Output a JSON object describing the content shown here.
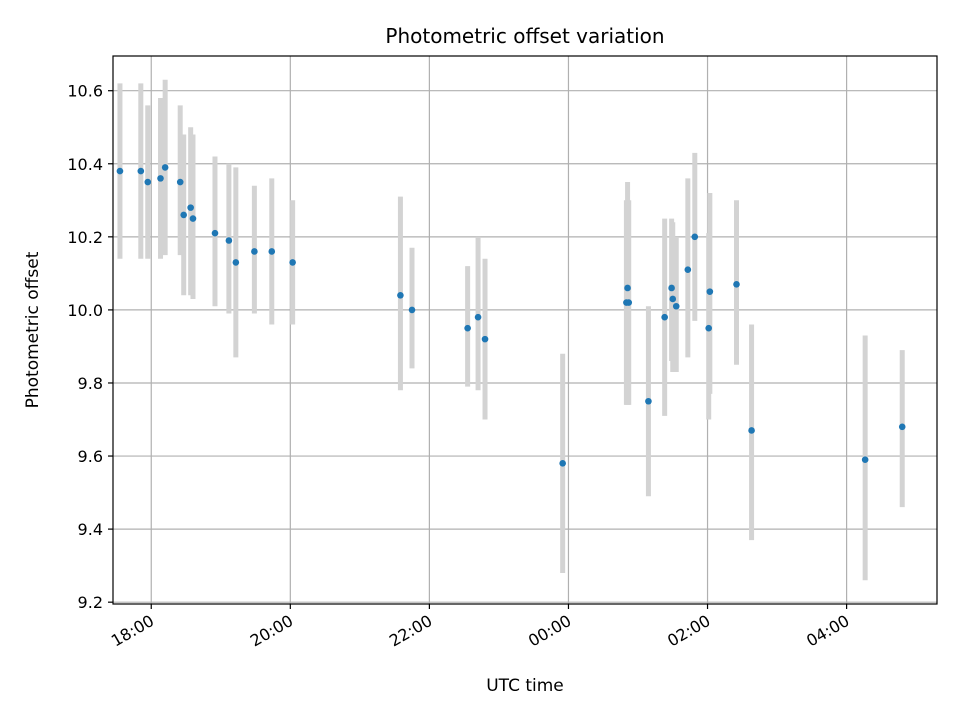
{
  "chart_data": {
    "type": "scatter",
    "title": "Photometric offset variation",
    "xlabel": "UTC time",
    "ylabel": "Photometric offset",
    "x_axis": "time",
    "x_range": [
      "17:27",
      "05:18"
    ],
    "y_range": [
      9.195,
      10.695
    ],
    "y_ticks": [
      9.2,
      9.4,
      9.6,
      9.8,
      10.0,
      10.2,
      10.4,
      10.6
    ],
    "y_tick_labels": [
      "9.2",
      "9.4",
      "9.6",
      "9.8",
      "10.0",
      "10.2",
      "10.4",
      "10.6"
    ],
    "x_ticks": [
      "18:00",
      "20:00",
      "22:00",
      "00:00",
      "02:00",
      "04:00"
    ],
    "x_tick_labels": [
      "18:00",
      "20:00",
      "22:00",
      "00:00",
      "02:00",
      "04:00"
    ],
    "grid": true,
    "legend": "none",
    "point_color": "#1f77b4",
    "errorbar_color": "#d3d3d3",
    "points": [
      {
        "time": "17:33",
        "y": 10.38,
        "lo": 10.14,
        "hi": 10.62
      },
      {
        "time": "17:51",
        "y": 10.38,
        "lo": 10.14,
        "hi": 10.62
      },
      {
        "time": "17:57",
        "y": 10.35,
        "lo": 10.14,
        "hi": 10.56
      },
      {
        "time": "18:08",
        "y": 10.36,
        "lo": 10.14,
        "hi": 10.58
      },
      {
        "time": "18:12",
        "y": 10.39,
        "lo": 10.15,
        "hi": 10.63
      },
      {
        "time": "18:25",
        "y": 10.35,
        "lo": 10.15,
        "hi": 10.56
      },
      {
        "time": "18:28",
        "y": 10.26,
        "lo": 10.04,
        "hi": 10.48
      },
      {
        "time": "18:34",
        "y": 10.28,
        "lo": 10.04,
        "hi": 10.5
      },
      {
        "time": "18:36",
        "y": 10.25,
        "lo": 10.03,
        "hi": 10.48
      },
      {
        "time": "18:55",
        "y": 10.21,
        "lo": 10.01,
        "hi": 10.42
      },
      {
        "time": "19:07",
        "y": 10.19,
        "lo": 9.99,
        "hi": 10.4
      },
      {
        "time": "19:13",
        "y": 10.13,
        "lo": 9.87,
        "hi": 10.39
      },
      {
        "time": "19:29",
        "y": 10.16,
        "lo": 9.99,
        "hi": 10.34
      },
      {
        "time": "19:44",
        "y": 10.16,
        "lo": 9.96,
        "hi": 10.36
      },
      {
        "time": "20:02",
        "y": 10.13,
        "lo": 9.96,
        "hi": 10.3
      },
      {
        "time": "21:35",
        "y": 10.04,
        "lo": 9.78,
        "hi": 10.31
      },
      {
        "time": "21:45",
        "y": 10.0,
        "lo": 9.84,
        "hi": 10.17
      },
      {
        "time": "22:33",
        "y": 9.95,
        "lo": 9.79,
        "hi": 10.12
      },
      {
        "time": "22:42",
        "y": 9.98,
        "lo": 9.78,
        "hi": 10.2
      },
      {
        "time": "22:48",
        "y": 9.92,
        "lo": 9.7,
        "hi": 10.14
      },
      {
        "time": "23:55",
        "y": 9.58,
        "lo": 9.28,
        "hi": 9.88
      },
      {
        "time": "00:50",
        "y": 10.02,
        "lo": 9.74,
        "hi": 10.3
      },
      {
        "time": "00:51",
        "y": 10.06,
        "lo": 9.74,
        "hi": 10.35
      },
      {
        "time": "00:52",
        "y": 10.02,
        "lo": 9.74,
        "hi": 10.3
      },
      {
        "time": "01:09",
        "y": 9.75,
        "lo": 9.49,
        "hi": 10.01
      },
      {
        "time": "01:23",
        "y": 9.98,
        "lo": 9.71,
        "hi": 10.25
      },
      {
        "time": "01:29",
        "y": 10.06,
        "lo": 9.86,
        "hi": 10.25
      },
      {
        "time": "01:30",
        "y": 10.03,
        "lo": 9.83,
        "hi": 10.24
      },
      {
        "time": "01:33",
        "y": 10.01,
        "lo": 9.83,
        "hi": 10.2
      },
      {
        "time": "01:43",
        "y": 10.11,
        "lo": 9.87,
        "hi": 10.36
      },
      {
        "time": "01:49",
        "y": 10.2,
        "lo": 9.97,
        "hi": 10.43
      },
      {
        "time": "02:01",
        "y": 9.95,
        "lo": 9.7,
        "hi": 10.21
      },
      {
        "time": "02:02",
        "y": 10.05,
        "lo": 9.77,
        "hi": 10.32
      },
      {
        "time": "02:25",
        "y": 10.07,
        "lo": 9.85,
        "hi": 10.3
      },
      {
        "time": "02:38",
        "y": 9.67,
        "lo": 9.37,
        "hi": 9.96
      },
      {
        "time": "04:16",
        "y": 9.59,
        "lo": 9.26,
        "hi": 9.93
      },
      {
        "time": "04:48",
        "y": 9.68,
        "lo": 9.46,
        "hi": 9.89
      }
    ]
  }
}
